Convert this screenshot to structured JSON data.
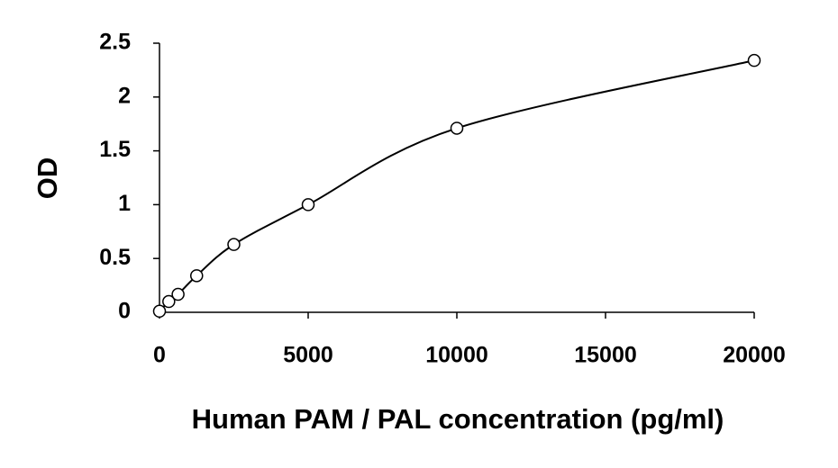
{
  "chart_data": {
    "type": "scatter",
    "x_label": "Human PAM / PAL concentration (pg/ml)",
    "y_label": "OD",
    "x": [
      0,
      312.5,
      625,
      1250,
      2500,
      5000,
      10000,
      20000
    ],
    "values": [
      0.01,
      0.1,
      0.167,
      0.34,
      0.63,
      1.0,
      1.71,
      2.34
    ],
    "color": "#000000",
    "xlim": [
      0,
      20000
    ],
    "xticks": [
      0,
      5000,
      10000,
      15000,
      20000
    ],
    "ylim": [
      0,
      2.5
    ],
    "yticks": [
      0,
      0.5,
      1,
      1.5,
      2,
      2.5
    ],
    "grid": false
  }
}
